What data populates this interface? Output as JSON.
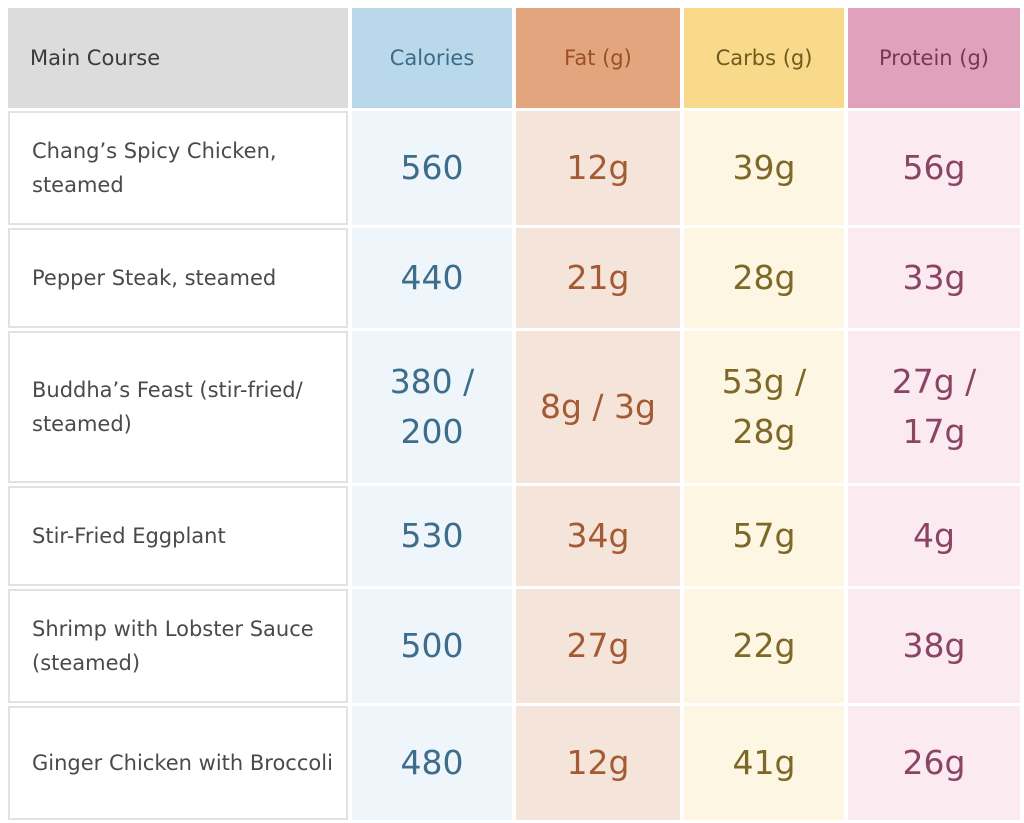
{
  "header": {
    "main_course": "Main Course",
    "calories": "Calories",
    "fat": "Fat (g)",
    "carbs": "Carbs (g)",
    "protein": "Protein (g)"
  },
  "rows": [
    {
      "name": "Chang’s Spicy Chicken, steamed",
      "calories": "560",
      "fat": "12g",
      "carbs": "39g",
      "protein": "56g"
    },
    {
      "name": "Pepper Steak, steamed",
      "calories": "440",
      "fat": "21g",
      "carbs": "28g",
      "protein": "33g"
    },
    {
      "name": "Buddha’s Feast (stir-fried/ steamed)",
      "calories": "380 / 200",
      "fat": "8g / 3g",
      "carbs": "53g / 28g",
      "protein": "27g / 17g"
    },
    {
      "name": "Stir-Fried Eggplant",
      "calories": "530",
      "fat": "34g",
      "carbs": "57g",
      "protein": "4g"
    },
    {
      "name": "Shrimp with Lobster Sauce (steamed)",
      "calories": "500",
      "fat": "27g",
      "carbs": "22g",
      "protein": "38g"
    },
    {
      "name": "Ginger Chicken with Broccoli",
      "calories": "480",
      "fat": "12g",
      "carbs": "41g",
      "protein": "26g"
    }
  ],
  "colors": {
    "calories_accent": "#3e6d8c",
    "fat_accent": "#a45a33",
    "carbs_accent": "#7d6828",
    "protein_accent": "#8a4464"
  }
}
